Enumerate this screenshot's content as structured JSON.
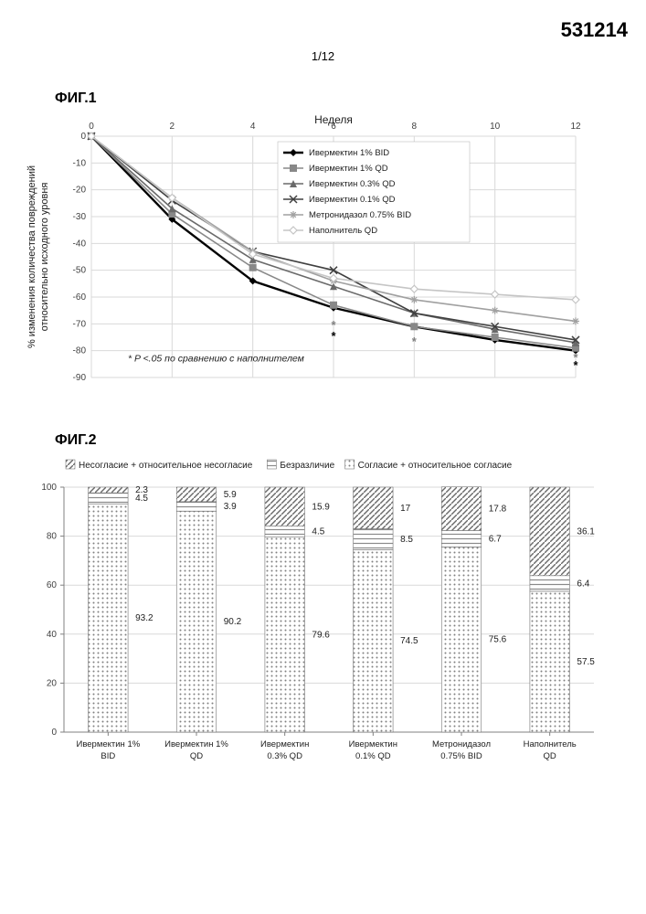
{
  "document_number": "531214",
  "page_indicator": "1/12",
  "fig1": {
    "label": "ФИГ.1",
    "type": "line",
    "x_title": "Неделя",
    "y_title": "% изменения количества повреждений\nотносительно исходного уровня",
    "x_ticks": [
      0,
      2,
      4,
      6,
      8,
      10,
      12
    ],
    "y_ticks": [
      0,
      -10,
      -20,
      -30,
      -40,
      -50,
      -60,
      -70,
      -80,
      -90
    ],
    "xlim": [
      0,
      12
    ],
    "ylim": [
      -90,
      0
    ],
    "grid_color": "#d9d9d9",
    "axis_color": "#808080",
    "axis_fontsize": 10,
    "footnote": "* P <.05 по сравнению с наполнителем",
    "series": [
      {
        "name": "Ивермектин 1% BID",
        "color": "#000000",
        "width": 2.4,
        "marker": "diamond",
        "y": [
          0,
          -31,
          -54,
          -64,
          -71,
          -76,
          -80
        ]
      },
      {
        "name": "Ивермектин 1% QD",
        "color": "#888888",
        "width": 1.6,
        "marker": "square",
        "y": [
          0,
          -29,
          -49,
          -63,
          -71,
          -75,
          -79
        ]
      },
      {
        "name": "Ивермектин 0.3% QD",
        "color": "#6a6a6a",
        "width": 1.6,
        "marker": "triangle",
        "y": [
          0,
          -27,
          -46,
          -56,
          -66,
          -72,
          -77
        ]
      },
      {
        "name": "Ивермектин 0.1% QD",
        "color": "#404040",
        "width": 1.6,
        "marker": "x",
        "y": [
          0,
          -24,
          -43,
          -50,
          -66,
          -71,
          -76
        ]
      },
      {
        "name": "Метронидазол 0.75% BID",
        "color": "#a0a0a0",
        "width": 1.6,
        "marker": "star",
        "y": [
          0,
          -23,
          -43,
          -54,
          -61,
          -65,
          -69
        ]
      },
      {
        "name": "Наполнитель QD",
        "color": "#c5c5c5",
        "width": 1.6,
        "marker": "diamond2",
        "y": [
          0,
          -23,
          -44,
          -53,
          -57,
          -59,
          -61
        ]
      }
    ],
    "sig_markers": [
      {
        "x": 6,
        "y": -72,
        "symbol": "*",
        "color": "#808080"
      },
      {
        "x": 6,
        "y": -76,
        "symbol": "*",
        "color": "#000000"
      },
      {
        "x": 8,
        "y": -78,
        "symbol": "*",
        "color": "#808080"
      },
      {
        "x": 12,
        "y": -84,
        "symbol": "*",
        "color": "#808080"
      },
      {
        "x": 12,
        "y": -87,
        "symbol": "*",
        "color": "#000000"
      }
    ]
  },
  "fig2": {
    "label": "ФИГ.2",
    "type": "stacked_bar",
    "y_ticks": [
      0,
      20,
      40,
      60,
      80,
      100
    ],
    "ylim": [
      0,
      100
    ],
    "grid_color": "#d9d9d9",
    "axis_color": "#808080",
    "axis_fontsize": 10,
    "legend": [
      {
        "label": "Несогласие + относительное несогласие",
        "pattern": "diag1",
        "color": "#6a6a6a"
      },
      {
        "label": "Безразличие",
        "pattern": "horiz",
        "color": "#8a8a8a"
      },
      {
        "label": "Согласие + относительное согласие",
        "pattern": "dots",
        "color": "#808080"
      }
    ],
    "categories": [
      {
        "labels": [
          "Ивермектин 1%",
          "BID"
        ],
        "values": [
          93.2,
          4.5,
          2.3
        ]
      },
      {
        "labels": [
          "Ивермектин 1%",
          "QD"
        ],
        "values": [
          90.2,
          3.9,
          5.9
        ]
      },
      {
        "labels": [
          "Ивермектин",
          "0.3% QD"
        ],
        "values": [
          79.6,
          4.5,
          15.9
        ]
      },
      {
        "labels": [
          "Ивермектин",
          "0.1% QD"
        ],
        "values": [
          74.5,
          8.5,
          17
        ]
      },
      {
        "labels": [
          "Метронидазол",
          "0.75% BID"
        ],
        "values": [
          75.6,
          6.7,
          17.8
        ]
      },
      {
        "labels": [
          "Наполнитель",
          "QD"
        ],
        "values": [
          57.5,
          6.4,
          36.1
        ]
      }
    ],
    "bar_width": 0.45,
    "value_fontsize": 10
  }
}
